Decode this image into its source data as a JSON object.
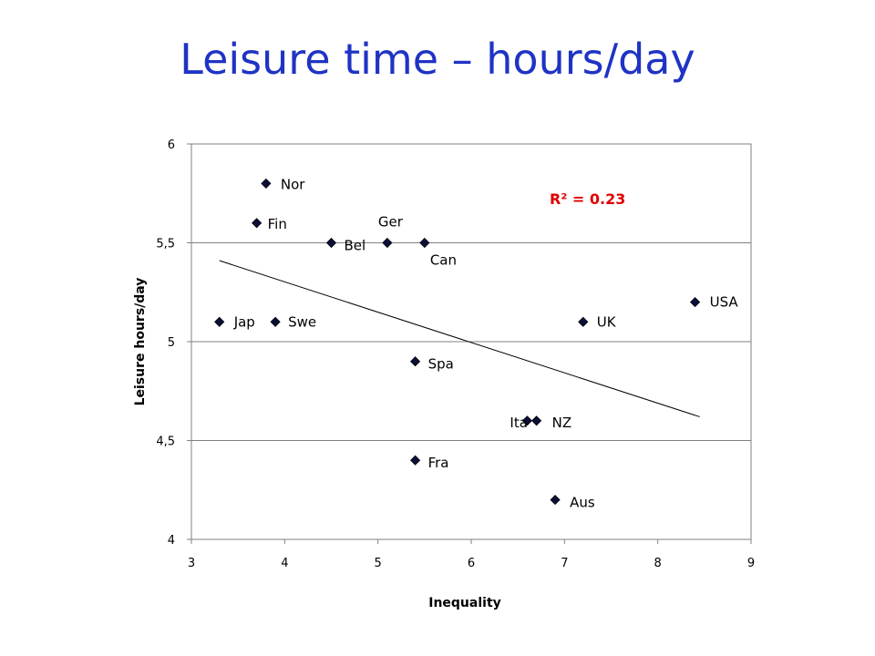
{
  "title": "Leisure time – hours/day",
  "chart_data": {
    "type": "scatter",
    "xlabel": "Inequality",
    "ylabel": "Leisure hours/day",
    "xlim": [
      3,
      9
    ],
    "ylim": [
      4,
      6
    ],
    "x_ticks": [
      "3",
      "4",
      "5",
      "6",
      "7",
      "8",
      "9"
    ],
    "y_ticks": [
      "4",
      "4,5",
      "5",
      "5,5",
      "6"
    ],
    "grid": "horizontal",
    "annotation": "R² = 0.23",
    "annotation_color": "#e00000",
    "marker_color": "#0a0f3a",
    "trendline": {
      "x": [
        3.3,
        8.45
      ],
      "y": [
        5.41,
        4.62
      ]
    },
    "points": [
      {
        "label": "Nor",
        "x": 3.8,
        "y": 5.8
      },
      {
        "label": "Fin",
        "x": 3.7,
        "y": 5.6
      },
      {
        "label": "Bel",
        "x": 4.5,
        "y": 5.5
      },
      {
        "label": "Ger",
        "x": 5.1,
        "y": 5.5
      },
      {
        "label": "Can",
        "x": 5.5,
        "y": 5.5
      },
      {
        "label": "USA",
        "x": 8.4,
        "y": 5.2
      },
      {
        "label": "Jap",
        "x": 3.3,
        "y": 5.1
      },
      {
        "label": "Swe",
        "x": 3.9,
        "y": 5.1
      },
      {
        "label": "UK",
        "x": 7.2,
        "y": 5.1
      },
      {
        "label": "Spa",
        "x": 5.4,
        "y": 4.9
      },
      {
        "label": "Ita",
        "x": 6.6,
        "y": 4.6
      },
      {
        "label": "NZ",
        "x": 6.7,
        "y": 4.6
      },
      {
        "label": "Fra",
        "x": 5.4,
        "y": 4.4
      },
      {
        "label": "Aus",
        "x": 6.9,
        "y": 4.2
      }
    ]
  }
}
